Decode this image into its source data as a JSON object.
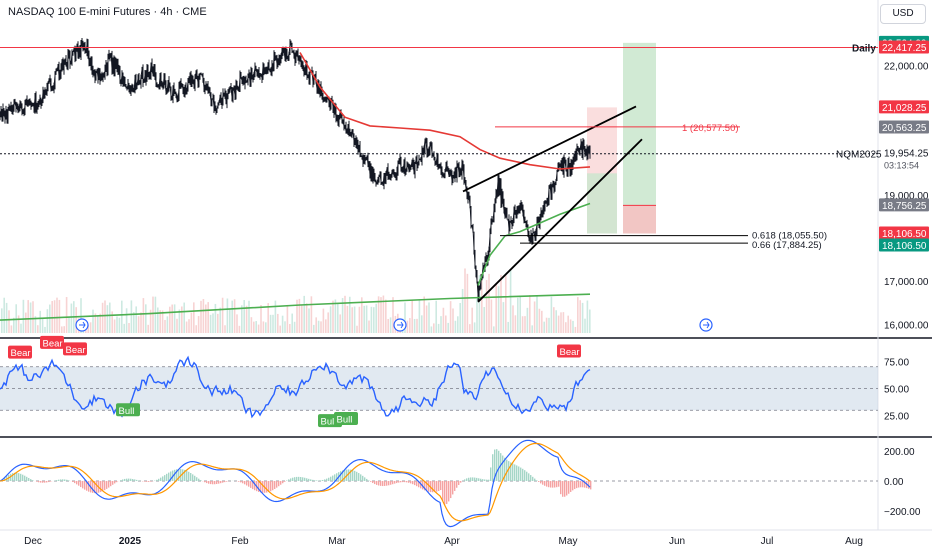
{
  "header": {
    "title": "NASDAQ 100 E-mini Futures · 4h · CME",
    "currency_button": "USD"
  },
  "colors": {
    "red": "#f23645",
    "green": "#089981",
    "ma_red": "#e53935",
    "ma_green": "#4caf50",
    "blue": "#2962ff",
    "orange": "#ff9800",
    "rsi_line": "#2962ff",
    "rsi_band": "#c8d7e6",
    "price": "#131722"
  },
  "chart_data": [
    {
      "type": "line",
      "panel": "price",
      "x_axis_labels": [
        "Dec",
        "2025",
        "Feb",
        "Mar",
        "Apr",
        "May",
        "Jun",
        "Jul",
        "Aug"
      ],
      "y_ticks": [
        16000,
        17000,
        19000,
        22000
      ],
      "y_tick_labels": [
        "16,000.00",
        "17,000.00",
        "19,000.00",
        "22,000.00"
      ],
      "ylim": [
        15800,
        23100
      ],
      "price_path_keypoints": [
        [
          0,
          20820
        ],
        [
          40,
          21200
        ],
        [
          60,
          21900
        ],
        [
          85,
          22550
        ],
        [
          95,
          21700
        ],
        [
          110,
          22100
        ],
        [
          130,
          21500
        ],
        [
          150,
          21900
        ],
        [
          175,
          21300
        ],
        [
          200,
          21800
        ],
        [
          215,
          21000
        ],
        [
          240,
          21600
        ],
        [
          265,
          21900
        ],
        [
          290,
          22400
        ],
        [
          305,
          22000
        ],
        [
          320,
          21400
        ],
        [
          345,
          20600
        ],
        [
          360,
          20100
        ],
        [
          375,
          19300
        ],
        [
          390,
          19500
        ],
        [
          400,
          19700
        ],
        [
          415,
          19600
        ],
        [
          425,
          20200
        ],
        [
          440,
          19700
        ],
        [
          450,
          19400
        ],
        [
          462,
          19650
        ],
        [
          470,
          18700
        ],
        [
          478,
          16700
        ],
        [
          488,
          17700
        ],
        [
          498,
          19300
        ],
        [
          508,
          18300
        ],
        [
          520,
          18800
        ],
        [
          532,
          17900
        ],
        [
          545,
          18800
        ],
        [
          560,
          19600
        ],
        [
          572,
          19700
        ],
        [
          580,
          20150
        ],
        [
          590,
          19950
        ]
      ],
      "moving_average_red": [
        [
          300,
          22300
        ],
        [
          320,
          21500
        ],
        [
          345,
          20800
        ],
        [
          370,
          20600
        ],
        [
          400,
          20550
        ],
        [
          430,
          20500
        ],
        [
          460,
          20350
        ],
        [
          480,
          20050
        ],
        [
          500,
          19850
        ],
        [
          530,
          19700
        ],
        [
          560,
          19600
        ],
        [
          590,
          19650
        ]
      ],
      "moving_average_green_long": [
        [
          0,
          16100
        ],
        [
          150,
          16250
        ],
        [
          300,
          16450
        ],
        [
          450,
          16600
        ],
        [
          590,
          16700
        ]
      ],
      "moving_average_green_short": [
        [
          478,
          16900
        ],
        [
          490,
          17600
        ],
        [
          505,
          18050
        ],
        [
          520,
          18150
        ],
        [
          540,
          18350
        ],
        [
          560,
          18550
        ],
        [
          590,
          18800
        ]
      ],
      "markers": [
        {
          "label": "Daily",
          "value": 22417.25
        },
        {
          "label": "NQM2025",
          "value": 19954.25,
          "sub": "03:13:54"
        }
      ],
      "axis_badges": [
        {
          "text": "22,524.00",
          "color": "#089981",
          "value": 22524
        },
        {
          "text": "22,417.25",
          "color": "#f23645",
          "value": 22417.25
        },
        {
          "text": "21,028.25",
          "color": "#f23645",
          "value": 21028.25
        },
        {
          "text": "20,563.25",
          "color": "#787b86",
          "value": 20563.25
        },
        {
          "text": "18,756.25",
          "color": "#787b86",
          "value": 18756.25
        },
        {
          "text": "18,106.50",
          "color": "#f23645",
          "value": 18106.5
        },
        {
          "text": "18,106.50",
          "color": "#089981",
          "value": 18106.5
        }
      ],
      "current_price_label": "19,954.25",
      "countdown_label": "03:13:54",
      "annotations": [
        {
          "text": "1 (20,577.50)",
          "value": 20577.5
        },
        {
          "text": "0.618 (18,055.50)",
          "value": 18055.5
        },
        {
          "text": "0.66 (17,884.25)",
          "value": 17884.25
        }
      ]
    },
    {
      "type": "line",
      "panel": "rsi",
      "y_tick_labels": [
        "75.00",
        "50.00",
        "25.00"
      ],
      "y_ticks": [
        75,
        50,
        25
      ],
      "ylim": [
        10,
        90
      ],
      "band": [
        30,
        70
      ],
      "signals": [
        {
          "label": "Bear",
          "kind": "bear",
          "x": 20,
          "value": 83
        },
        {
          "label": "Bear",
          "kind": "bear",
          "x": 52,
          "value": 92
        },
        {
          "label": "Bear",
          "kind": "bear",
          "x": 75,
          "value": 86
        },
        {
          "label": "Bull",
          "kind": "bull",
          "x": 128,
          "value": 30
        },
        {
          "label": "Bull",
          "kind": "bull",
          "x": 330,
          "value": 20
        },
        {
          "label": "Bull",
          "kind": "bull",
          "x": 346,
          "value": 22
        },
        {
          "label": "Bear",
          "kind": "bear",
          "x": 569,
          "value": 84
        }
      ]
    },
    {
      "type": "line",
      "panel": "macd",
      "y_tick_labels": [
        "200.00",
        "0.00",
        "−200.00"
      ],
      "y_ticks": [
        200,
        0,
        -200
      ],
      "ylim": [
        -300,
        260
      ]
    }
  ]
}
